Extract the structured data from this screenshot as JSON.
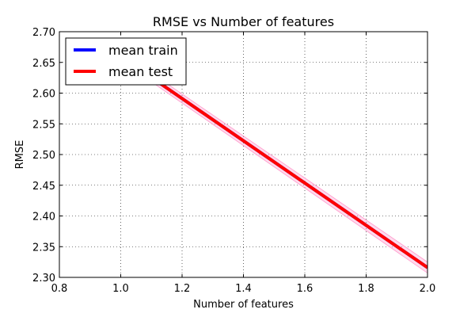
{
  "chart_data": {
    "type": "line",
    "title": "RMSE vs Number of features",
    "xlabel": "Number of features",
    "ylabel": "RMSE",
    "xlim": [
      0.8,
      2.0
    ],
    "ylim": [
      2.3,
      2.7
    ],
    "xticks": [
      "0.8",
      "1.0",
      "1.2",
      "1.4",
      "1.6",
      "1.8",
      "2.0"
    ],
    "yticks": [
      "2.30",
      "2.35",
      "2.40",
      "2.45",
      "2.50",
      "2.55",
      "2.60",
      "2.65",
      "2.70"
    ],
    "grid": true,
    "legend_position": "top-left",
    "series": [
      {
        "name": "mean train",
        "color": "#0000ff",
        "x": [
          1.0,
          2.0
        ],
        "y": [
          2.66,
          2.316
        ]
      },
      {
        "name": "mean test",
        "color": "#ff0000",
        "x": [
          1.0,
          2.0
        ],
        "y": [
          2.66,
          2.316
        ],
        "band": {
          "color": "#ff99cc",
          "lower": [
            2.653,
            2.307
          ],
          "upper": [
            2.667,
            2.325
          ]
        }
      }
    ]
  }
}
